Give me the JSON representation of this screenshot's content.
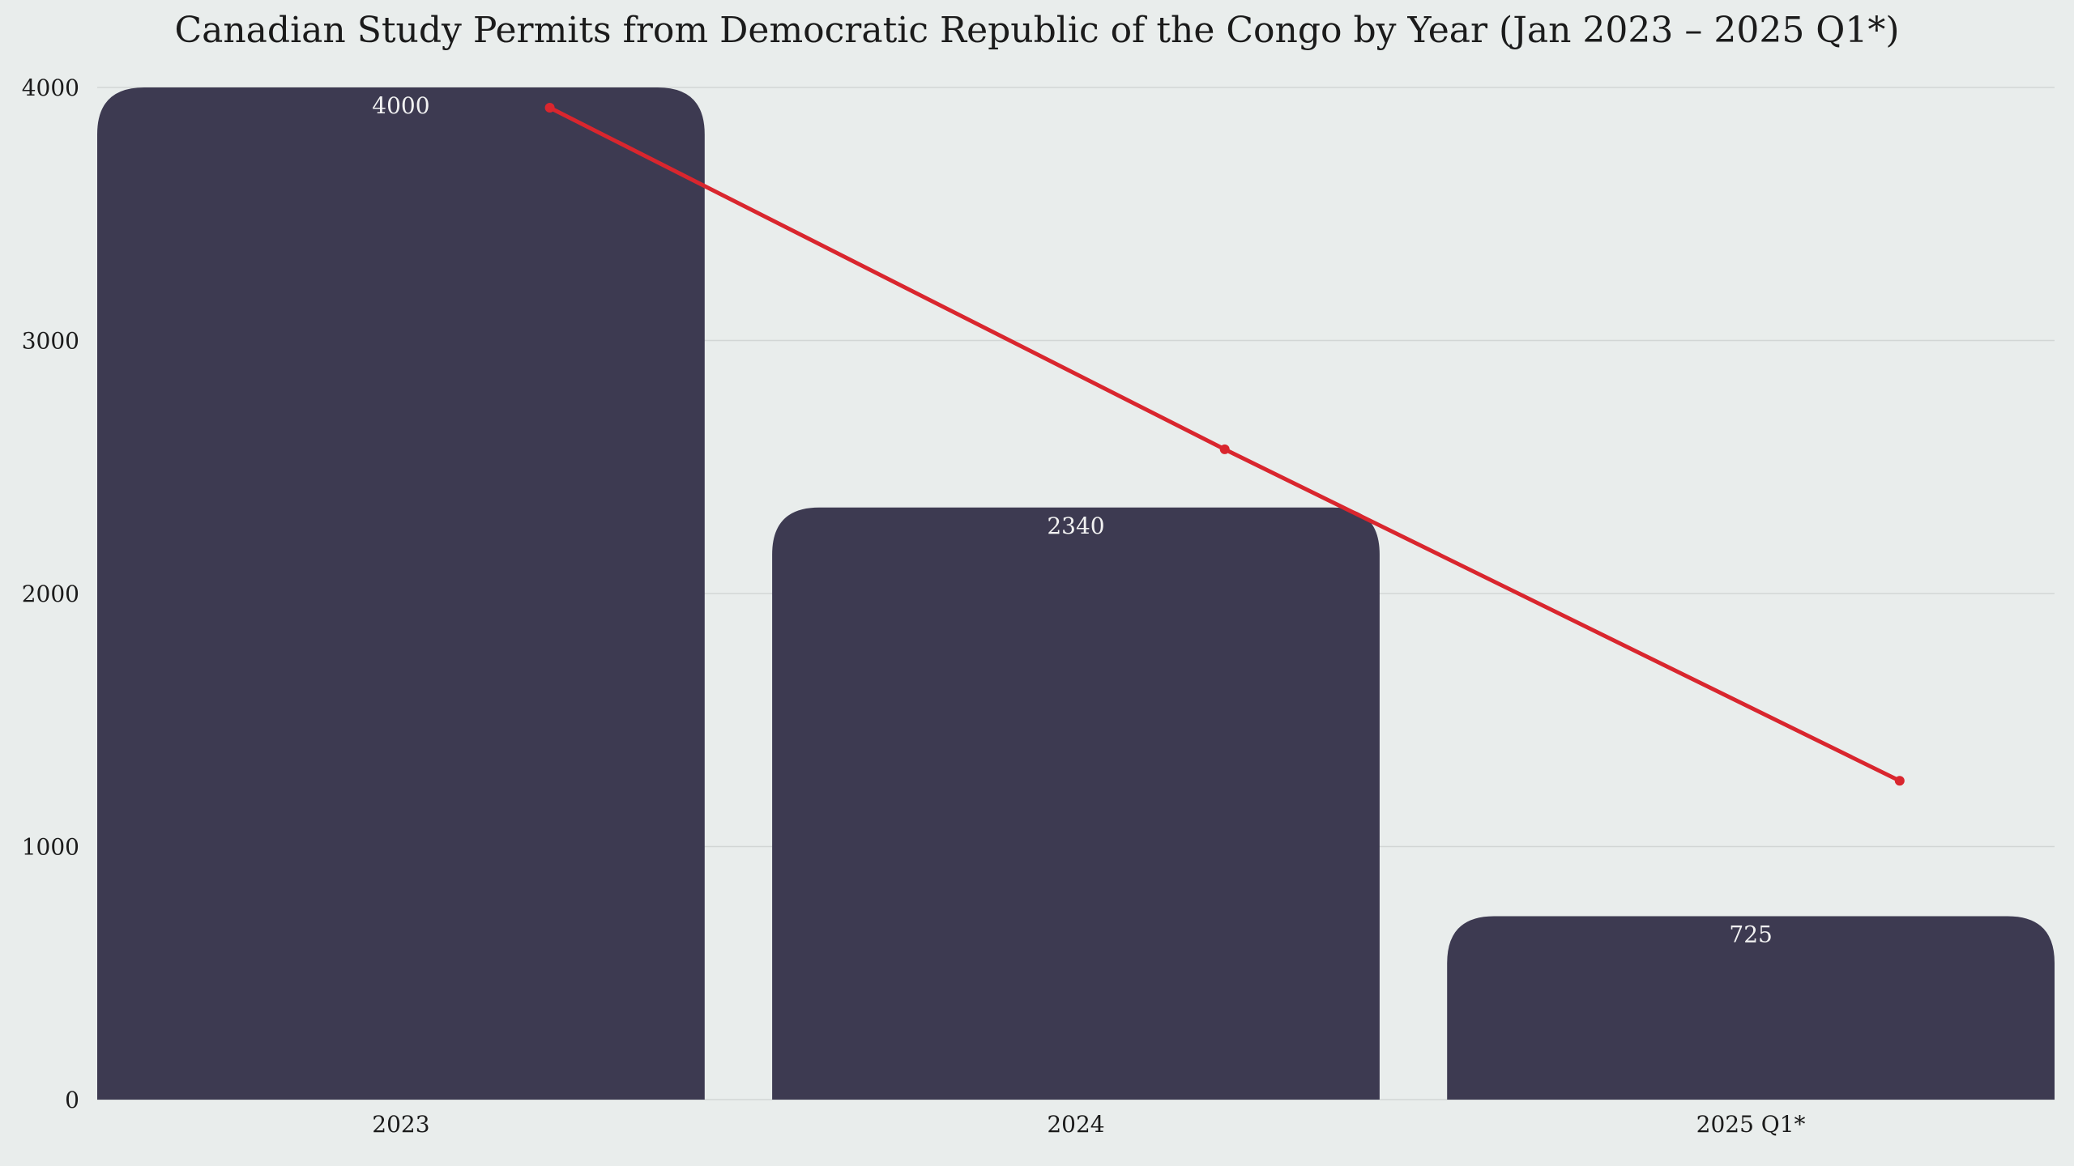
{
  "chart_data": {
    "type": "bar",
    "title": "Canadian Study Permits from Democratic Republic of the Congo by Year (Jan 2023 – 2025 Q1*)",
    "xlabel": "",
    "ylabel": "",
    "categories": [
      "2023",
      "2024",
      "2025 Q1*"
    ],
    "values": [
      4000,
      2340,
      725
    ],
    "data_labels": [
      "4000",
      "2340",
      "725"
    ],
    "trend_line": [
      3920,
      2570,
      1260
    ],
    "ylim": [
      0,
      4000
    ],
    "yticks": [
      0,
      1000,
      2000,
      3000,
      4000
    ],
    "ytick_labels": [
      "0",
      "1000",
      "2000",
      "3000",
      "4000"
    ],
    "grid": true,
    "legend": "none",
    "colors": {
      "bar": "#3d3a51",
      "trend": "#d9262e",
      "background": "#e9edec",
      "grid": "#d2d6d5",
      "data_label": "#f2f2f2"
    }
  }
}
